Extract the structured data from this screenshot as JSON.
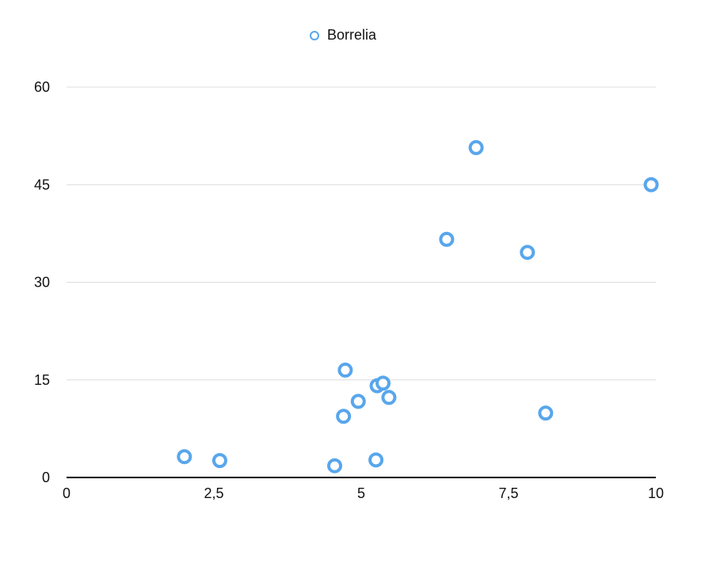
{
  "chart_data": {
    "type": "scatter",
    "series": [
      {
        "name": "Borrelia",
        "color": "#58a6ec",
        "points": [
          {
            "x": 2.0,
            "y": 3.2
          },
          {
            "x": 2.6,
            "y": 2.6
          },
          {
            "x": 4.55,
            "y": 1.8
          },
          {
            "x": 4.7,
            "y": 9.4
          },
          {
            "x": 4.73,
            "y": 16.5
          },
          {
            "x": 4.95,
            "y": 11.7
          },
          {
            "x": 5.25,
            "y": 2.7
          },
          {
            "x": 5.27,
            "y": 14.1
          },
          {
            "x": 5.37,
            "y": 14.5
          },
          {
            "x": 5.47,
            "y": 12.3
          },
          {
            "x": 6.45,
            "y": 36.6
          },
          {
            "x": 6.95,
            "y": 50.7
          },
          {
            "x": 7.82,
            "y": 34.6
          },
          {
            "x": 8.13,
            "y": 9.9
          },
          {
            "x": 9.92,
            "y": 45.0
          }
        ]
      }
    ],
    "x_ticks": [
      "0",
      "2,5",
      "5",
      "7,5",
      "10"
    ],
    "y_ticks": [
      "0",
      "15",
      "30",
      "45",
      "60"
    ],
    "xlim": [
      0,
      10
    ],
    "ylim": [
      0,
      60
    ],
    "grid": "horizontal",
    "legend": "top-center"
  }
}
